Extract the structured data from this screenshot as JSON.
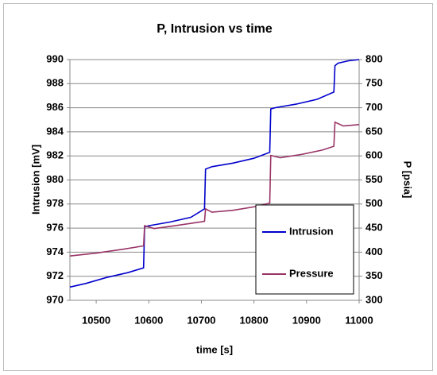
{
  "chart_data": {
    "type": "line",
    "title": "P, Intrusion vs time",
    "x_label": "time  [s]",
    "y_label": "Intrusion  [mV]",
    "y2_label": "P  [psia]",
    "xlim": [
      10450,
      11000
    ],
    "xticks": [
      10500,
      10600,
      10700,
      10800,
      10900,
      11000
    ],
    "ylim": [
      970,
      990
    ],
    "yticks": [
      970,
      972,
      974,
      976,
      978,
      980,
      982,
      984,
      986,
      988,
      990
    ],
    "y2lim": [
      300,
      800
    ],
    "y2ticks": [
      300,
      350,
      400,
      450,
      500,
      550,
      600,
      650,
      700,
      750,
      800
    ],
    "grid": true,
    "legend": "lower right",
    "series": [
      {
        "name": "Intrusion",
        "color": "#0000cc",
        "x": [
          10450,
          10480,
          10520,
          10560,
          10590,
          10592,
          10600,
          10640,
          10680,
          10706,
          10708,
          10720,
          10760,
          10800,
          10830,
          10832,
          10840,
          10880,
          10920,
          10952,
          10954,
          10960,
          10980,
          11000
        ],
        "values": [
          971.1,
          971.4,
          971.9,
          972.3,
          972.7,
          976.1,
          976.2,
          976.5,
          976.9,
          977.6,
          980.9,
          981.1,
          981.4,
          981.8,
          982.3,
          985.9,
          986.0,
          986.3,
          986.7,
          987.3,
          989.5,
          989.7,
          989.9,
          990.0
        ]
      },
      {
        "name": "Pressure",
        "color": "#993366",
        "axis": "y2",
        "x": [
          10450,
          10500,
          10550,
          10590,
          10592,
          10610,
          10650,
          10706,
          10708,
          10720,
          10760,
          10800,
          10830,
          10832,
          10850,
          10890,
          10930,
          10952,
          10954,
          10970,
          11000
        ],
        "values": [
          392,
          398,
          406,
          413,
          455,
          449,
          455,
          464,
          490,
          483,
          487,
          494,
          502,
          601,
          596,
          603,
          612,
          620,
          670,
          662,
          665
        ]
      }
    ]
  }
}
